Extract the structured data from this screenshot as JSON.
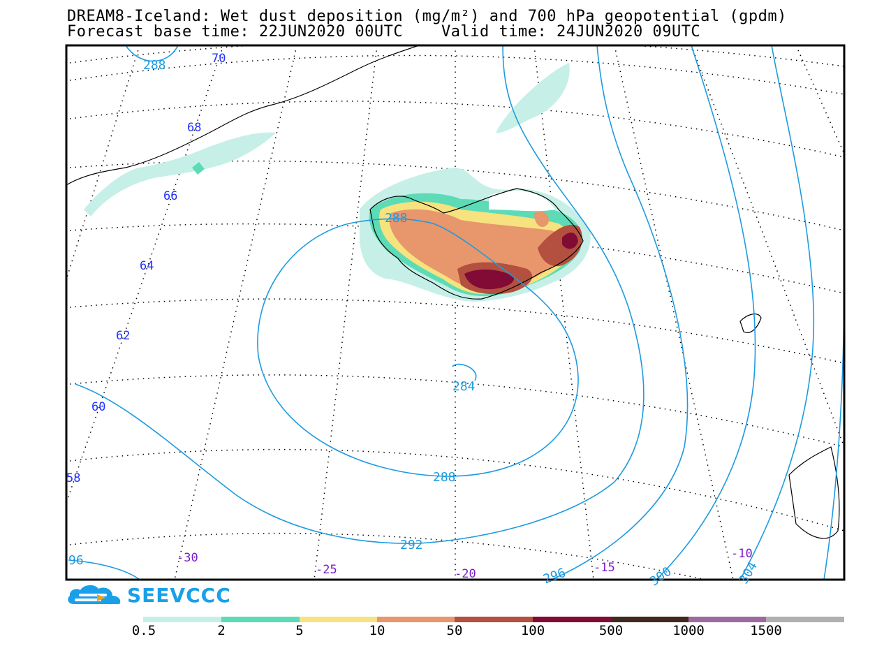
{
  "title": {
    "line1": "DREAM8-Iceland: Wet dust deposition (mg/m²) and 700 hPa geopotential (gpdm)",
    "line2": "Forecast base time: 22JUN2020 00UTC    Valid time: 24JUN2020 09UTC"
  },
  "map": {
    "region": "Iceland and surrounding North Atlantic",
    "latitude_labels": [
      "70",
      "68",
      "66",
      "64",
      "62",
      "60",
      "58"
    ],
    "longitude_labels": [
      "-30",
      "-25",
      "-20",
      "-15",
      "-10"
    ],
    "contour_labels": [
      "288",
      "288",
      "284",
      "288",
      "292",
      "96",
      "296",
      "300",
      "304"
    ],
    "colors": {
      "contour": "#1e9be0",
      "lat_label": "#2233ff",
      "lon_label": "#7a1cc9"
    }
  },
  "logo": {
    "text": "SEEVCCC",
    "icon": "cloud-logo-icon",
    "color": "#1aa0e8"
  },
  "legend": {
    "labels": [
      "0.5",
      "2",
      "5",
      "10",
      "50",
      "100",
      "500",
      "1000",
      "1500"
    ],
    "colors": [
      "#c6f0e7",
      "#5ddbb7",
      "#f6e27f",
      "#e8966b",
      "#b3503f",
      "#820b35",
      "#3f2a1d",
      "#9b6ba0",
      "#b0b0b0"
    ]
  }
}
